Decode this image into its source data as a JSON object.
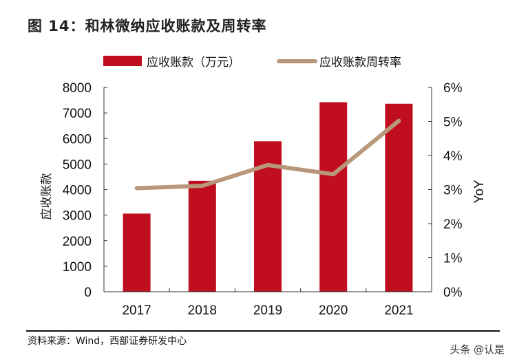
{
  "title": "图 14：和林微纳应收账款及周转率",
  "source": "资料来源：Wind，西部证券研发中心",
  "watermark": "头条 @认是",
  "chart_data": {
    "type": "bar+line",
    "categories": [
      "2017",
      "2018",
      "2019",
      "2020",
      "2021"
    ],
    "series": [
      {
        "name": "应收账款（万元）",
        "type": "bar",
        "axis": "left",
        "color": "#C00E1E",
        "values": [
          3060,
          4340,
          5890,
          7420,
          7360
        ]
      },
      {
        "name": "应收账款周转率",
        "type": "line",
        "axis": "right",
        "color": "#B8977A",
        "values": [
          3.04,
          3.11,
          3.72,
          3.45,
          5.02
        ]
      }
    ],
    "ylabel": "应收账款",
    "ylim": [
      0,
      8000
    ],
    "yticks": [
      "0",
      "1000",
      "2000",
      "3000",
      "4000",
      "5000",
      "6000",
      "7000",
      "8000"
    ],
    "y2label": "YoY",
    "y2lim": [
      0,
      6
    ],
    "y2ticks": [
      "0%",
      "1%",
      "2%",
      "3%",
      "4%",
      "5%",
      "6%"
    ],
    "legend": "top",
    "grid": false
  }
}
